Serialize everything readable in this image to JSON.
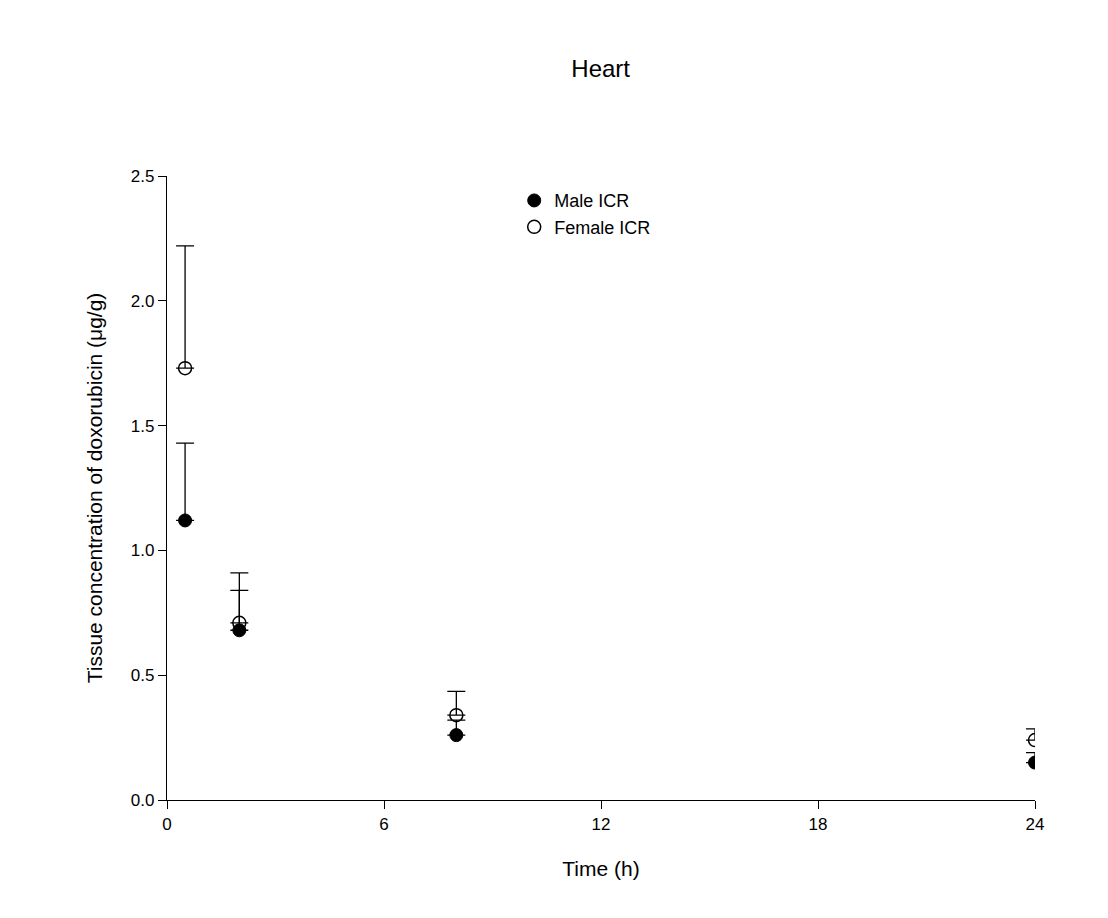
{
  "chart_data": {
    "type": "scatter",
    "title": "Heart",
    "x_label": "Time (h)",
    "y_label": "Tissue concentration of doxorubicin (μg/g)",
    "x": [
      0.5,
      2,
      8,
      24
    ],
    "series": [
      {
        "name": "Male ICR",
        "color": "#000000",
        "marker": "filled",
        "values": [
          1.12,
          0.68,
          0.26,
          0.15
        ],
        "error": [
          0.31,
          0.16,
          0.06,
          0.04
        ]
      },
      {
        "name": "Female ICR",
        "color": "#000000",
        "marker": "open",
        "values": [
          1.73,
          0.71,
          0.34,
          0.24
        ],
        "error": [
          0.49,
          0.2,
          0.095,
          0.045
        ]
      }
    ],
    "xlim": [
      0,
      24
    ],
    "xticks": [
      0,
      6,
      12,
      18,
      24
    ],
    "ylim": [
      0,
      2.5
    ],
    "yticks": [
      {
        "value": 0,
        "label": "0.0"
      },
      0.5,
      {
        "value": 1,
        "label": "1.0"
      },
      1.5,
      {
        "value": 2,
        "label": "2.0"
      },
      2.5
    ],
    "grid": false,
    "legend": "top"
  }
}
